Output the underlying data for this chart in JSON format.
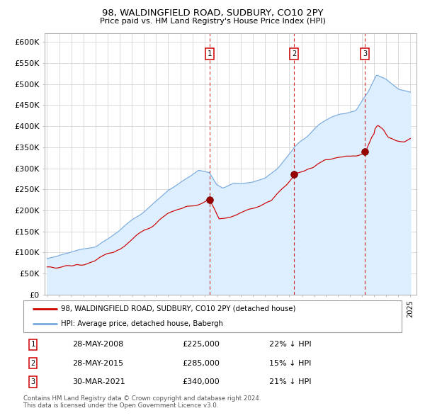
{
  "title1": "98, WALDINGFIELD ROAD, SUDBURY, CO10 2PY",
  "title2": "Price paid vs. HM Land Registry's House Price Index (HPI)",
  "legend_line1": "98, WALDINGFIELD ROAD, SUDBURY, CO10 2PY (detached house)",
  "legend_line2": "HPI: Average price, detached house, Babergh",
  "table_rows": [
    {
      "num": "1",
      "date": "28-MAY-2008",
      "price": "£225,000",
      "pct": "22% ↓ HPI"
    },
    {
      "num": "2",
      "date": "28-MAY-2015",
      "price": "£285,000",
      "pct": "15% ↓ HPI"
    },
    {
      "num": "3",
      "date": "30-MAR-2021",
      "price": "£340,000",
      "pct": "21% ↓ HPI"
    }
  ],
  "footer": "Contains HM Land Registry data © Crown copyright and database right 2024.\nThis data is licensed under the Open Government Licence v3.0.",
  "red_color": "#cc0000",
  "blue_color": "#7aaadd",
  "blue_fill": "#ddeeff",
  "grid_color": "#cccccc",
  "sale_dates": [
    2008.41,
    2015.41,
    2021.25
  ],
  "sale_prices": [
    225000,
    285000,
    340000
  ],
  "ylim": [
    0,
    620000
  ],
  "yticks": [
    0,
    50000,
    100000,
    150000,
    200000,
    250000,
    300000,
    350000,
    400000,
    450000,
    500000,
    550000,
    600000
  ]
}
